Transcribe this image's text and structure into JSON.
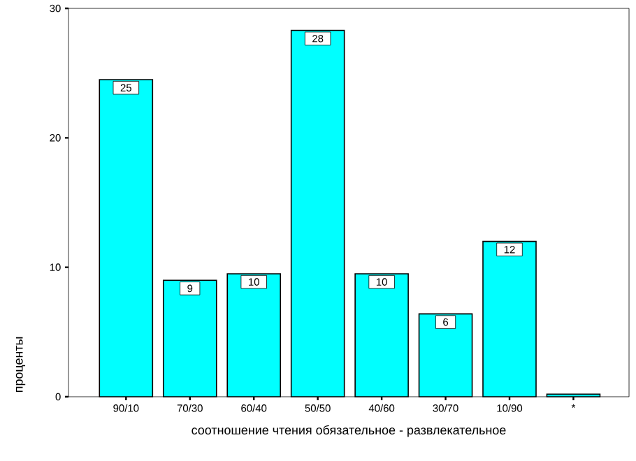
{
  "chart_data": {
    "type": "bar",
    "xlabel": "соотношение чтения обязательное - развлекательное",
    "ylabel": "проценты",
    "categories": [
      "90/10",
      "70/30",
      "60/40",
      "50/50",
      "40/60",
      "30/70",
      "10/90",
      "*"
    ],
    "values": [
      24.5,
      9.0,
      9.5,
      28.3,
      9.5,
      6.4,
      12.0,
      0.2
    ],
    "value_labels": [
      "25",
      "9",
      "10",
      "28",
      "10",
      "6",
      "12",
      null
    ],
    "color": "#00ffff",
    "ylim": [
      0,
      30
    ],
    "yticks": [
      0,
      10,
      20,
      30
    ],
    "grid": false
  }
}
